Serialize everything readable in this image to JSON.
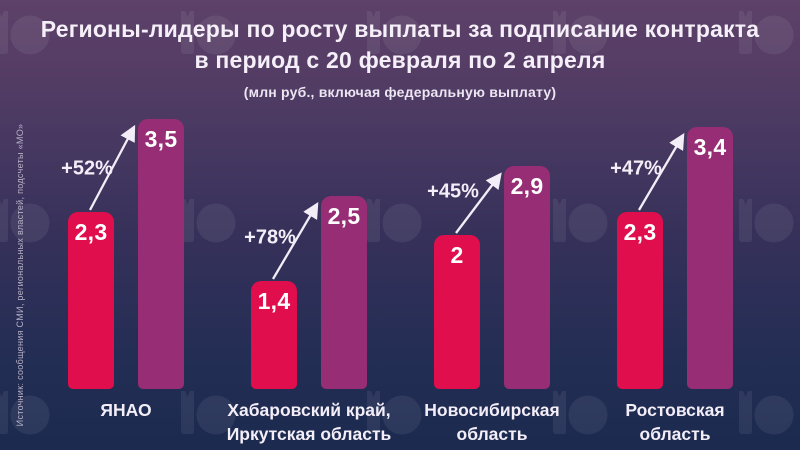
{
  "header": {
    "title_line1": "Регионы-лидеры по росту выплаты за подписание контракта",
    "title_line2": "в период с 20 февраля по 2 апреля",
    "subtitle": "(млн руб., включая федеральную выплату)"
  },
  "source_note": "Источник: сообщения СМИ, региональных властей, подсчеты «МО»",
  "colors": {
    "bar_start": "#e00e4d",
    "bar_end": "#972d74",
    "background_top": "#5d4169",
    "background_bottom": "#1c2a4f",
    "text": "#ffffff",
    "source_text": "#b7b1c6"
  },
  "watermark_icon": "mo-logo-pattern",
  "chart_data": {
    "type": "bar",
    "title": "Регионы-лидеры по росту выплаты за подписание контракта в период с 20 февраля по 2 апреля",
    "units": "млн руб., включая федеральную выплату",
    "period": {
      "from": "20 февраля",
      "to": "2 апреля"
    },
    "ylim": [
      0,
      4
    ],
    "grid": false,
    "legend": false,
    "groups": [
      {
        "region": "ЯНАО",
        "region_lines": [
          "ЯНАО"
        ],
        "start_value": 2.3,
        "start_label": "2,3",
        "end_value": 3.5,
        "end_label": "3,5",
        "growth": "+52%"
      },
      {
        "region": "Хабаровский край, Иркутская область",
        "region_lines": [
          "Хабаровский край,",
          "Иркутская область"
        ],
        "start_value": 1.4,
        "start_label": "1,4",
        "end_value": 2.5,
        "end_label": "2,5",
        "growth": "+78%"
      },
      {
        "region": "Новосибирская область",
        "region_lines": [
          "Новосибирская",
          "область"
        ],
        "start_value": 2.0,
        "start_label": "2",
        "end_value": 2.9,
        "end_label": "2,9",
        "growth": "+45%"
      },
      {
        "region": "Ростовская область",
        "region_lines": [
          "Ростовская",
          "область"
        ],
        "start_value": 2.3,
        "start_label": "2,3",
        "end_value": 3.4,
        "end_label": "3,4",
        "growth": "+47%"
      }
    ]
  }
}
